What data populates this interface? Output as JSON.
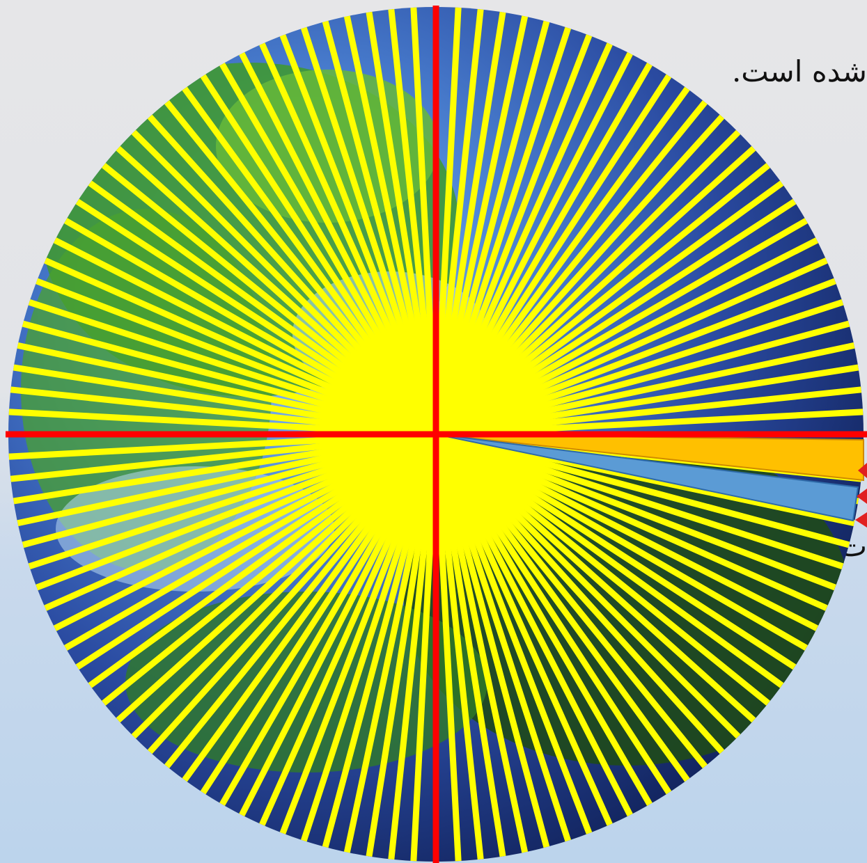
{
  "slide": {
    "text_top": "شده است.",
    "text_bottom": "ت."
  },
  "colors": {
    "ray": "#ffff00",
    "axis": "#ff0000",
    "highlight_orange": "#ffc000",
    "highlight_blue": "#5b9bd5",
    "arrow": "#e02020"
  },
  "diagram": {
    "ray_count": 120,
    "highlighted_sectors": [
      "orange-sector",
      "blue-sector"
    ],
    "pointer_arrows": 3
  }
}
